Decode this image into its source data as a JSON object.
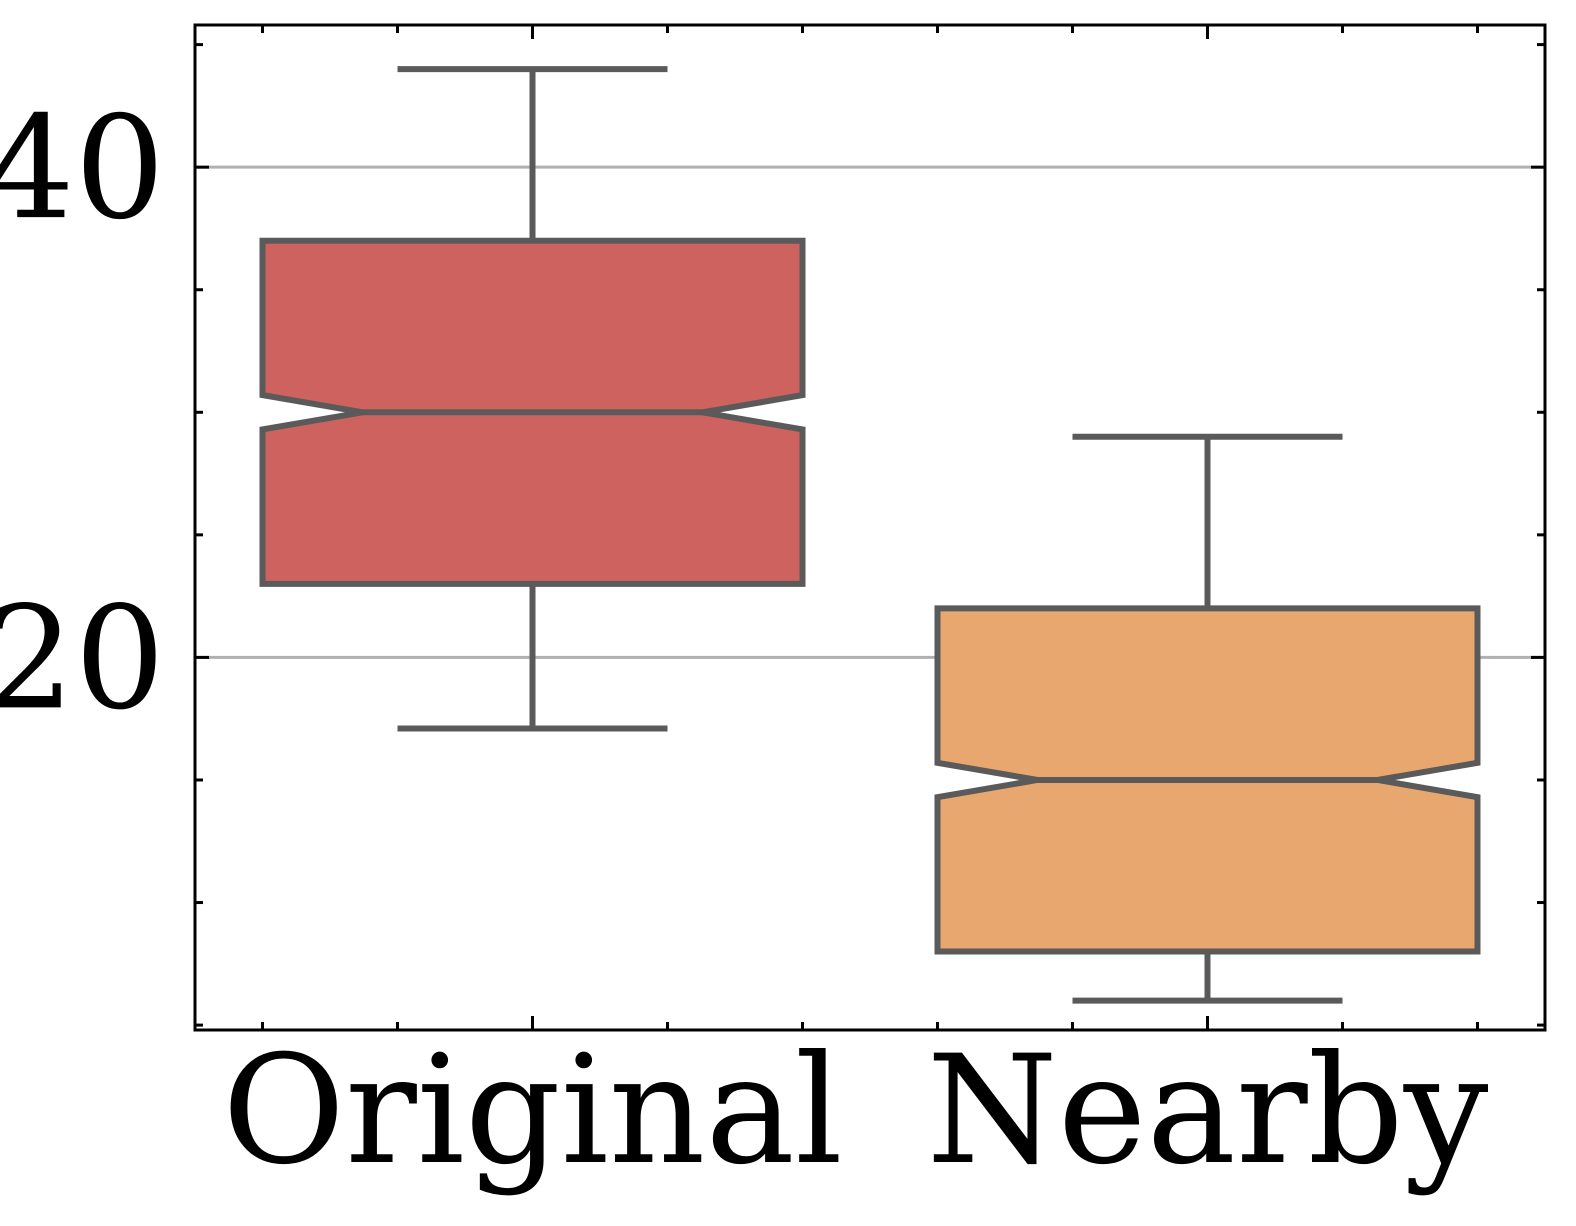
{
  "chart_data": {
    "type": "box",
    "categories": [
      "Original",
      "Nearby"
    ],
    "boxes": [
      {
        "category": "Original",
        "whisker_low": 17.1,
        "q1": 23.0,
        "median": 30.0,
        "q3": 30.0,
        "upper_q": 30.0,
        "q3_top": 37.0,
        "whisker_high": 44.0,
        "notch_low": 29.3,
        "notch_high": 30.7,
        "color": "#cd625e"
      },
      {
        "category": "Nearby",
        "whisker_low": 6.0,
        "q1": 8.0,
        "median": 15.0,
        "q3_top": 22.0,
        "whisker_high": 29.0,
        "notch_low": 14.3,
        "notch_high": 15.7,
        "color": "#e7a76f"
      }
    ],
    "y_ticks": [
      20,
      40
    ],
    "y_minor_ticks": [
      5,
      10,
      15,
      25,
      30,
      35,
      45
    ],
    "ylim": [
      4.8,
      45.8
    ],
    "grid": "horizontal at major ticks",
    "edge_color": "#5a5a5a",
    "title": "",
    "xlabel": "",
    "ylabel": ""
  }
}
